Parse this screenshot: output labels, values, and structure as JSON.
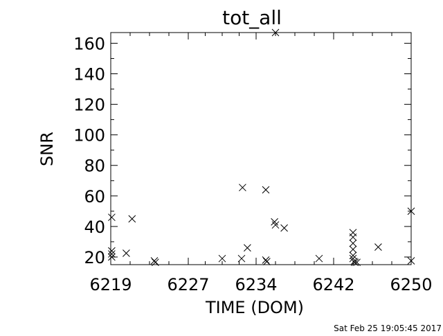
{
  "chart_data": {
    "type": "scatter",
    "title": "tot_all",
    "xlabel": "TIME (DOM)",
    "ylabel": "SNR",
    "xlim": [
      6219,
      6250
    ],
    "ylim": [
      15,
      167
    ],
    "xticks": [
      6219,
      6227,
      6234,
      6242,
      6250
    ],
    "yticks": [
      20,
      40,
      60,
      80,
      100,
      120,
      140,
      160
    ],
    "marker": "x",
    "grid": false,
    "series": [
      {
        "points": [
          [
            6219.1,
            46
          ],
          [
            6219.1,
            24
          ],
          [
            6219.1,
            22
          ],
          [
            6219.1,
            20
          ],
          [
            6220.6,
            22.5
          ],
          [
            6221.2,
            45
          ],
          [
            6223.5,
            17.5
          ],
          [
            6223.6,
            16.5
          ],
          [
            6230.5,
            19
          ],
          [
            6232.5,
            19
          ],
          [
            6232.6,
            65.5
          ],
          [
            6233.1,
            26
          ],
          [
            6235.0,
            64
          ],
          [
            6235.0,
            18
          ],
          [
            6235.1,
            17
          ],
          [
            6235.9,
            43
          ],
          [
            6236.0,
            41
          ],
          [
            6236.9,
            39
          ],
          [
            6236.0,
            167
          ],
          [
            6240.5,
            19
          ],
          [
            6244.0,
            36
          ],
          [
            6244.0,
            33
          ],
          [
            6244.0,
            29
          ],
          [
            6244.0,
            25
          ],
          [
            6244.0,
            21
          ],
          [
            6244.0,
            19
          ],
          [
            6244.1,
            17
          ],
          [
            6244.2,
            16.5
          ],
          [
            6244.4,
            16.5
          ],
          [
            6246.6,
            26.5
          ],
          [
            6250.0,
            50
          ],
          [
            6250.0,
            17.5
          ]
        ]
      }
    ],
    "footer_timestamp": "Sat Feb 25 19:05:45 2017",
    "colors": {
      "background": "#ffffff",
      "foreground": "#000000"
    }
  }
}
